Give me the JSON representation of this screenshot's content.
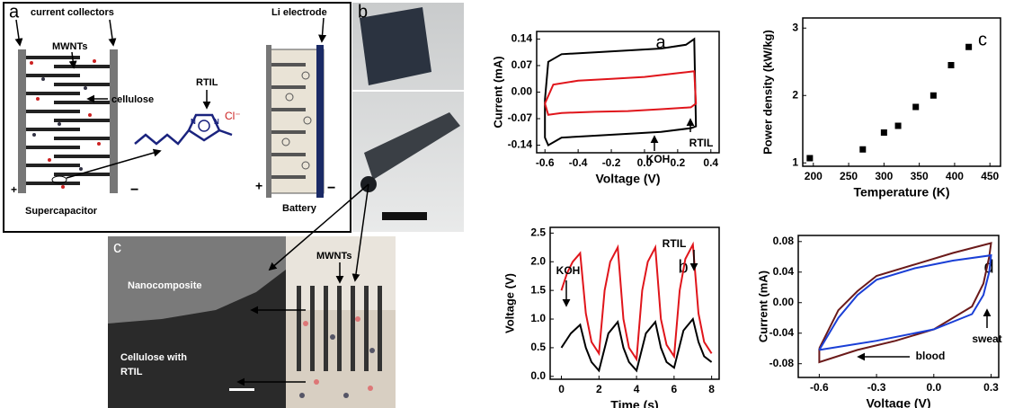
{
  "schematic_a": {
    "label": "a",
    "current_collectors": "current collectors",
    "mwnts": "MWNTs",
    "cellulose": "cellulose",
    "rtil": "RTIL",
    "chloride": "Cl⁻",
    "ring_atoms": [
      "N",
      "N"
    ],
    "supercapacitor": "Supercapacitor",
    "plus": "+",
    "minus": "−",
    "li_electrode": "Li electrode",
    "battery": "Battery",
    "battery_plus": "+",
    "battery_minus": "−"
  },
  "photo_b": {
    "label": "b"
  },
  "sem_c": {
    "label": "c",
    "nanocomposite": "Nanocomposite",
    "cellulose_rtil": [
      "Cellulose with",
      "RTIL"
    ],
    "mwnts": "MWNTs"
  },
  "chart_data": [
    {
      "type": "line",
      "panel_label": "a",
      "xlabel": "Voltage (V)",
      "ylabel": "Current (mA)",
      "xlim": [
        -0.65,
        0.45
      ],
      "ylim": [
        -0.16,
        0.16
      ],
      "xticks": [
        -0.6,
        -0.4,
        -0.2,
        {
          "value": 0,
          "label": "0.0"
        },
        0.2,
        0.4
      ],
      "yticks": [
        0.14,
        0.07,
        {
          "value": 0,
          "label": "0.00"
        },
        -0.07,
        -0.14
      ],
      "annotations": [
        "KOH",
        "RTIL"
      ],
      "series": [
        {
          "color": "#000000",
          "x": [
            -0.6,
            -0.58,
            -0.5,
            -0.3,
            -0.1,
            0.1,
            0.25,
            0.3,
            0.31,
            0.28,
            0.1,
            -0.1,
            -0.3,
            -0.5,
            -0.58,
            -0.6,
            -0.6
          ],
          "values": [
            -0.02,
            0.08,
            0.1,
            0.105,
            0.11,
            0.115,
            0.125,
            0.14,
            -0.09,
            -0.095,
            -0.105,
            -0.11,
            -0.115,
            -0.12,
            -0.14,
            -0.12,
            -0.02
          ]
        },
        {
          "color": "#e0151b",
          "x": [
            -0.6,
            -0.55,
            -0.4,
            -0.2,
            0,
            0.2,
            0.3,
            0.31,
            0.28,
            0.1,
            -0.1,
            -0.3,
            -0.5,
            -0.58,
            -0.6
          ],
          "values": [
            -0.03,
            0.02,
            0.03,
            0.035,
            0.04,
            0.05,
            0.055,
            -0.03,
            -0.04,
            -0.045,
            -0.05,
            -0.052,
            -0.055,
            -0.06,
            -0.03
          ]
        }
      ]
    },
    {
      "type": "line",
      "panel_label": "b",
      "xlabel": "Time (s)",
      "ylabel": "Voltage (V)",
      "xlim": [
        -0.6,
        8.4
      ],
      "ylim": [
        -0.05,
        2.6
      ],
      "xticks": [
        0,
        2,
        4,
        6,
        8
      ],
      "yticks": [
        {
          "value": 0,
          "label": "0.0"
        },
        0.5,
        {
          "value": 1,
          "label": "1.0"
        },
        1.5,
        {
          "value": 2,
          "label": "2.0"
        },
        2.5
      ],
      "annotations": [
        "KOH",
        "RTIL"
      ],
      "series": [
        {
          "color": "#e0151b",
          "x": [
            0,
            0.3,
            0.6,
            1,
            1.3,
            1.6,
            2,
            2.3,
            2.6,
            3,
            3.3,
            3.6,
            4,
            4.3,
            4.6,
            5,
            5.3,
            5.6,
            6,
            6.3,
            6.6,
            7,
            7.3,
            7.6,
            8
          ],
          "values": [
            1.5,
            1.8,
            2.0,
            2.15,
            1.1,
            0.6,
            0.4,
            1.5,
            2.0,
            2.25,
            1.0,
            0.5,
            0.3,
            1.5,
            2.0,
            2.25,
            1.0,
            0.55,
            0.35,
            1.5,
            2.05,
            2.3,
            1.1,
            0.6,
            0.4
          ]
        },
        {
          "color": "#000000",
          "x": [
            0,
            0.5,
            1,
            1.3,
            1.6,
            2,
            2.5,
            3,
            3.3,
            3.6,
            4,
            4.5,
            5,
            5.3,
            5.6,
            6,
            6.5,
            7,
            7.3,
            7.6,
            8
          ],
          "values": [
            0.5,
            0.75,
            0.9,
            0.5,
            0.25,
            0.1,
            0.75,
            0.95,
            0.5,
            0.25,
            0.1,
            0.75,
            0.95,
            0.5,
            0.25,
            0.15,
            0.8,
            1.0,
            0.6,
            0.35,
            0.25
          ]
        }
      ]
    },
    {
      "type": "scatter",
      "panel_label": "c",
      "xlabel": "Temperature (K)",
      "ylabel": "Power density (kW/kg)",
      "xlim": [
        185,
        465
      ],
      "ylim": [
        0.95,
        3.15
      ],
      "xticks": [
        200,
        250,
        300,
        350,
        400,
        450
      ],
      "yticks": [
        1,
        2,
        3
      ],
      "series": [
        {
          "color": "#000000",
          "x": [
            195,
            270,
            300,
            320,
            345,
            370,
            395,
            420
          ],
          "values": [
            1.07,
            1.2,
            1.45,
            1.55,
            1.83,
            2.0,
            2.45,
            2.72
          ]
        }
      ]
    },
    {
      "type": "line",
      "panel_label": "d",
      "xlabel": "Voltage (V)",
      "ylabel": "Current (mA)",
      "xlim": [
        -0.71,
        0.34
      ],
      "ylim": [
        -0.098,
        0.088
      ],
      "xticks": [
        -0.6,
        -0.3,
        {
          "value": 0,
          "label": "0.0"
        },
        0.3
      ],
      "yticks": [
        0.08,
        0.04,
        {
          "value": 0,
          "label": "0.00"
        },
        -0.04,
        -0.08
      ],
      "annotations": [
        "blood",
        "sweat"
      ],
      "series": [
        {
          "color": "#6b1a1a",
          "x": [
            -0.6,
            -0.5,
            -0.4,
            -0.3,
            -0.1,
            0.1,
            0.3,
            0.29,
            0.26,
            0.2,
            0,
            -0.2,
            -0.4,
            -0.6,
            -0.6
          ],
          "values": [
            -0.06,
            -0.01,
            0.015,
            0.035,
            0.05,
            0.065,
            0.078,
            0.06,
            0.025,
            -0.005,
            -0.035,
            -0.05,
            -0.062,
            -0.078,
            -0.06
          ]
        },
        {
          "color": "#1a3fd6",
          "x": [
            -0.6,
            -0.5,
            -0.4,
            -0.3,
            -0.1,
            0.1,
            0.3,
            0.29,
            0.26,
            0.2,
            0,
            -0.3,
            -0.6
          ],
          "values": [
            -0.062,
            -0.02,
            0.01,
            0.03,
            0.045,
            0.055,
            0.062,
            0.04,
            0.01,
            -0.015,
            -0.035,
            -0.05,
            -0.062
          ]
        }
      ]
    }
  ]
}
